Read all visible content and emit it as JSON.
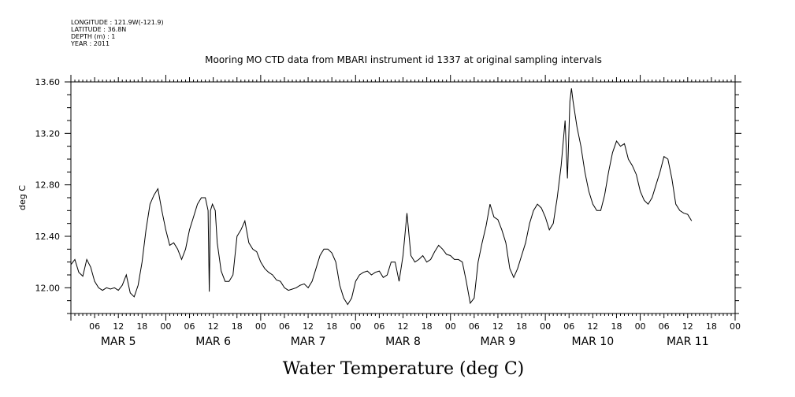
{
  "meta": {
    "longitude": "LONGITUDE : 121.9W(-121.9)",
    "latitude": "LATITUDE : 36.8N",
    "depth": "DEPTH (m) : 1",
    "year": "YEAR : 2011"
  },
  "chart_data": {
    "type": "line",
    "title": "Mooring MO CTD data from MBARI instrument id 1337 at original sampling intervals",
    "bottom_title": "Water Temperature (deg C)",
    "xlabel": "",
    "ylabel": "deg C",
    "ylim": [
      11.8,
      13.6
    ],
    "yticks": [
      "12.00",
      "12.40",
      "12.80",
      "13.20",
      "13.60"
    ],
    "ytick_values": [
      12.0,
      12.4,
      12.8,
      13.2,
      13.6
    ],
    "x_unit": "hours since MAR 5 00:00 (2011)",
    "xlim": [
      0,
      166
    ],
    "hour_tick_labels": [
      "06",
      "12",
      "18",
      "00",
      "06",
      "12",
      "18",
      "00",
      "06",
      "12",
      "18",
      "00",
      "06",
      "12",
      "18",
      "00",
      "06",
      "12",
      "18",
      "00",
      "06",
      "12",
      "18",
      "00",
      "06",
      "12",
      "18",
      "00"
    ],
    "day_labels": [
      "MAR 5",
      "MAR 6",
      "MAR 7",
      "MAR 8",
      "MAR 9",
      "MAR 10",
      "MAR 11"
    ],
    "grid": false,
    "legend": "none",
    "line_color": "#000000",
    "series": [
      {
        "values": [
          [
            0,
            12.18
          ],
          [
            1,
            12.22
          ],
          [
            2,
            12.12
          ],
          [
            3,
            12.09
          ],
          [
            4,
            12.22
          ],
          [
            5,
            12.16
          ],
          [
            6,
            12.05
          ],
          [
            7,
            12.0
          ],
          [
            8,
            11.98
          ],
          [
            9,
            12.0
          ],
          [
            10,
            11.99
          ],
          [
            11,
            12.0
          ],
          [
            12,
            11.98
          ],
          [
            13,
            12.02
          ],
          [
            14,
            12.1
          ],
          [
            15,
            11.96
          ],
          [
            16,
            11.93
          ],
          [
            17,
            12.02
          ],
          [
            18,
            12.2
          ],
          [
            19,
            12.45
          ],
          [
            20,
            12.65
          ],
          [
            21,
            12.72
          ],
          [
            22,
            12.77
          ],
          [
            23,
            12.6
          ],
          [
            24,
            12.45
          ],
          [
            25,
            12.33
          ],
          [
            26,
            12.35
          ],
          [
            27,
            12.3
          ],
          [
            28,
            12.22
          ],
          [
            29,
            12.3
          ],
          [
            30,
            12.45
          ],
          [
            31,
            12.55
          ],
          [
            32,
            12.65
          ],
          [
            33,
            12.7
          ],
          [
            34,
            12.7
          ],
          [
            34.7,
            12.6
          ],
          [
            35.0,
            11.97
          ],
          [
            35.3,
            12.6
          ],
          [
            35.8,
            12.65
          ],
          [
            36.5,
            12.6
          ],
          [
            37,
            12.35
          ],
          [
            38,
            12.13
          ],
          [
            39,
            12.05
          ],
          [
            40,
            12.05
          ],
          [
            41,
            12.1
          ],
          [
            42,
            12.4
          ],
          [
            43,
            12.45
          ],
          [
            44,
            12.52
          ],
          [
            45,
            12.35
          ],
          [
            46,
            12.3
          ],
          [
            47,
            12.28
          ],
          [
            48,
            12.2
          ],
          [
            49,
            12.15
          ],
          [
            50,
            12.12
          ],
          [
            51,
            12.1
          ],
          [
            52,
            12.06
          ],
          [
            53,
            12.05
          ],
          [
            54,
            12.0
          ],
          [
            55,
            11.98
          ],
          [
            56,
            11.99
          ],
          [
            57,
            12.0
          ],
          [
            58,
            12.02
          ],
          [
            59,
            12.03
          ],
          [
            60,
            12.0
          ],
          [
            61,
            12.05
          ],
          [
            62,
            12.15
          ],
          [
            63,
            12.25
          ],
          [
            64,
            12.3
          ],
          [
            65,
            12.3
          ],
          [
            66,
            12.27
          ],
          [
            67,
            12.2
          ],
          [
            68,
            12.02
          ],
          [
            69,
            11.92
          ],
          [
            70,
            11.87
          ],
          [
            71,
            11.92
          ],
          [
            72,
            12.05
          ],
          [
            73,
            12.1
          ],
          [
            74,
            12.12
          ],
          [
            75,
            12.13
          ],
          [
            76,
            12.1
          ],
          [
            77,
            12.12
          ],
          [
            78,
            12.13
          ],
          [
            79,
            12.08
          ],
          [
            80,
            12.1
          ],
          [
            81,
            12.2
          ],
          [
            82,
            12.2
          ],
          [
            83,
            12.05
          ],
          [
            84,
            12.25
          ],
          [
            85,
            12.58
          ],
          [
            86,
            12.25
          ],
          [
            87,
            12.2
          ],
          [
            88,
            12.22
          ],
          [
            89,
            12.25
          ],
          [
            90,
            12.2
          ],
          [
            91,
            12.22
          ],
          [
            92,
            12.28
          ],
          [
            93,
            12.33
          ],
          [
            94,
            12.3
          ],
          [
            95,
            12.26
          ],
          [
            96,
            12.25
          ],
          [
            97,
            12.22
          ],
          [
            98,
            12.22
          ],
          [
            99,
            12.2
          ],
          [
            100,
            12.05
          ],
          [
            101,
            11.88
          ],
          [
            102,
            11.92
          ],
          [
            103,
            12.2
          ],
          [
            104,
            12.35
          ],
          [
            105,
            12.48
          ],
          [
            106,
            12.65
          ],
          [
            107,
            12.55
          ],
          [
            108,
            12.53
          ],
          [
            109,
            12.45
          ],
          [
            110,
            12.35
          ],
          [
            111,
            12.15
          ],
          [
            112,
            12.08
          ],
          [
            113,
            12.15
          ],
          [
            114,
            12.25
          ],
          [
            115,
            12.35
          ],
          [
            116,
            12.5
          ],
          [
            117,
            12.6
          ],
          [
            118,
            12.65
          ],
          [
            119,
            12.62
          ],
          [
            120,
            12.55
          ],
          [
            121,
            12.45
          ],
          [
            122,
            12.5
          ],
          [
            123,
            12.7
          ],
          [
            124,
            12.95
          ],
          [
            125,
            13.3
          ],
          [
            125.6,
            12.85
          ],
          [
            126.2,
            13.45
          ],
          [
            126.6,
            13.55
          ],
          [
            127,
            13.45
          ],
          [
            128,
            13.25
          ],
          [
            129,
            13.1
          ],
          [
            130,
            12.9
          ],
          [
            131,
            12.75
          ],
          [
            132,
            12.65
          ],
          [
            133,
            12.6
          ],
          [
            134,
            12.6
          ],
          [
            135,
            12.72
          ],
          [
            136,
            12.9
          ],
          [
            137,
            13.05
          ],
          [
            138,
            13.14
          ],
          [
            139,
            13.1
          ],
          [
            140,
            13.12
          ],
          [
            141,
            13.0
          ],
          [
            142,
            12.95
          ],
          [
            143,
            12.88
          ],
          [
            144,
            12.75
          ],
          [
            145,
            12.68
          ],
          [
            146,
            12.65
          ],
          [
            147,
            12.7
          ],
          [
            148,
            12.8
          ],
          [
            149,
            12.9
          ],
          [
            150,
            13.02
          ],
          [
            151,
            13.0
          ],
          [
            152,
            12.85
          ],
          [
            153,
            12.65
          ],
          [
            154,
            12.6
          ],
          [
            155,
            12.58
          ],
          [
            156,
            12.57
          ],
          [
            157,
            12.52
          ]
        ]
      }
    ]
  }
}
